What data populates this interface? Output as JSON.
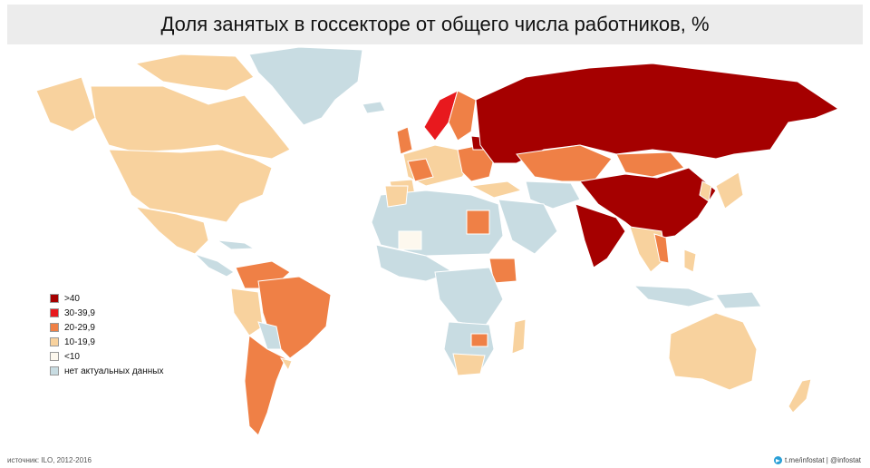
{
  "header": {
    "title": "Доля занятых в госсекторе от общего числа работников, %"
  },
  "colors": {
    "gt40": "#a50000",
    "c30_39": "#e8191e",
    "c20_29": "#ef8046",
    "c10_19": "#f8d29e",
    "lt10": "#fdf8ee",
    "nodata": "#c8dce2"
  },
  "legend": {
    "items": [
      {
        "label": ">40",
        "color": "#a50000"
      },
      {
        "label": "30-39,9",
        "color": "#e8191e"
      },
      {
        "label": "20-29,9",
        "color": "#ef8046"
      },
      {
        "label": "10-19,9",
        "color": "#f8d29e"
      },
      {
        "label": "<10",
        "color": "#fdf8ee"
      },
      {
        "label": "нет актуальных данных",
        "color": "#c8dce2"
      }
    ]
  },
  "footer": {
    "source": "источник: ILO, 2012-2016",
    "credit": "t.me/infostat | @infostat",
    "credit_icon": "telegram-icon"
  }
}
